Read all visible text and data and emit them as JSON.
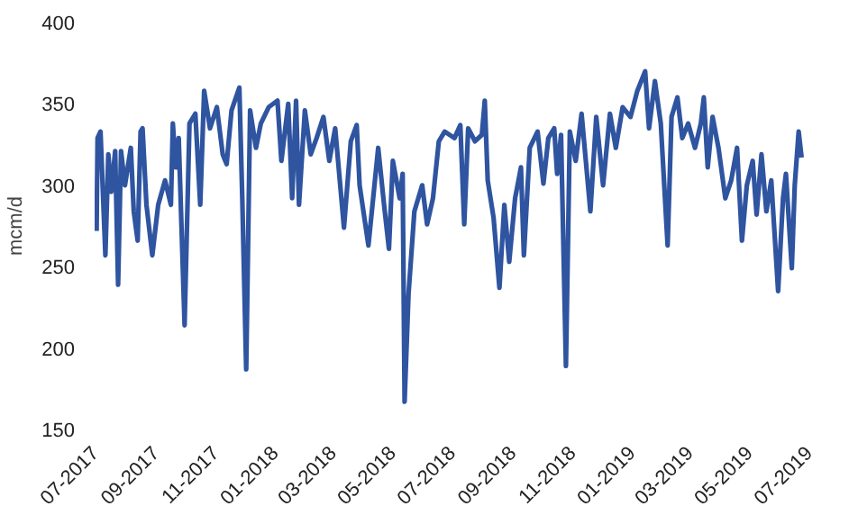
{
  "chart_data": {
    "type": "line",
    "ylabel": "mcm/d",
    "line_style": "solid",
    "marker": "none",
    "grid": false,
    "xlim": [
      "2017-07-01",
      "2019-07-01"
    ],
    "xticks": [
      {
        "value": "2017-07-01",
        "label": "07-2017"
      },
      {
        "value": "2017-09-01",
        "label": "09-2017"
      },
      {
        "value": "2017-11-01",
        "label": "11-2017"
      },
      {
        "value": "2018-01-01",
        "label": "01-2018"
      },
      {
        "value": "2018-03-01",
        "label": "03-2018"
      },
      {
        "value": "2018-05-01",
        "label": "05-2018"
      },
      {
        "value": "2018-07-01",
        "label": "07-2018"
      },
      {
        "value": "2018-09-01",
        "label": "09-2018"
      },
      {
        "value": "2018-11-01",
        "label": "11-2018"
      },
      {
        "value": "2019-01-01",
        "label": "01-2019"
      },
      {
        "value": "2019-03-01",
        "label": "03-2019"
      },
      {
        "value": "2019-05-01",
        "label": "05-2019"
      },
      {
        "value": "2019-07-01",
        "label": "07-2019"
      }
    ],
    "ylim": [
      150,
      400
    ],
    "yticks": [
      150,
      200,
      250,
      300,
      350,
      400
    ],
    "x": [
      "2017-07-03",
      "2017-07-04",
      "2017-07-07",
      "2017-07-12",
      "2017-07-15",
      "2017-07-18",
      "2017-07-22",
      "2017-07-25",
      "2017-07-28",
      "2017-08-01",
      "2017-08-07",
      "2017-08-10",
      "2017-08-14",
      "2017-08-17",
      "2017-08-19",
      "2017-08-23",
      "2017-08-29",
      "2017-09-04",
      "2017-09-11",
      "2017-09-17",
      "2017-09-19",
      "2017-09-22",
      "2017-09-25",
      "2017-10-01",
      "2017-10-06",
      "2017-10-12",
      "2017-10-17",
      "2017-10-21",
      "2017-10-27",
      "2017-11-03",
      "2017-11-09",
      "2017-11-13",
      "2017-11-18",
      "2017-11-26",
      "2017-11-29",
      "2017-12-03",
      "2017-12-07",
      "2017-12-13",
      "2017-12-18",
      "2017-12-26",
      "2018-01-04",
      "2018-01-08",
      "2018-01-15",
      "2018-01-19",
      "2018-01-23",
      "2018-01-26",
      "2018-02-01",
      "2018-02-07",
      "2018-02-13",
      "2018-02-20",
      "2018-02-26",
      "2018-03-04",
      "2018-03-13",
      "2018-03-20",
      "2018-03-26",
      "2018-03-29",
      "2018-04-07",
      "2018-04-17",
      "2018-04-23",
      "2018-04-28",
      "2018-05-02",
      "2018-05-09",
      "2018-05-12",
      "2018-05-14",
      "2018-05-18",
      "2018-05-24",
      "2018-06-01",
      "2018-06-06",
      "2018-06-12",
      "2018-06-18",
      "2018-06-24",
      "2018-07-04",
      "2018-07-10",
      "2018-07-14",
      "2018-07-18",
      "2018-07-25",
      "2018-08-01",
      "2018-08-04",
      "2018-08-07",
      "2018-08-13",
      "2018-08-19",
      "2018-08-24",
      "2018-08-29",
      "2018-09-04",
      "2018-09-10",
      "2018-09-13",
      "2018-09-19",
      "2018-09-27",
      "2018-10-03",
      "2018-10-08",
      "2018-10-14",
      "2018-10-17",
      "2018-10-21",
      "2018-10-26",
      "2018-10-30",
      "2018-11-05",
      "2018-11-11",
      "2018-11-20",
      "2018-11-26",
      "2018-12-03",
      "2018-12-10",
      "2018-12-16",
      "2018-12-23",
      "2018-12-31",
      "2019-01-07",
      "2019-01-15",
      "2019-01-19",
      "2019-01-25",
      "2019-01-31",
      "2019-02-07",
      "2019-02-11",
      "2019-02-17",
      "2019-02-22",
      "2019-02-28",
      "2019-03-07",
      "2019-03-13",
      "2019-03-16",
      "2019-03-20",
      "2019-03-25",
      "2019-03-31",
      "2019-04-07",
      "2019-04-13",
      "2019-04-19",
      "2019-04-24",
      "2019-04-29",
      "2019-05-05",
      "2019-05-09",
      "2019-05-14",
      "2019-05-19",
      "2019-05-24",
      "2019-05-31",
      "2019-06-05",
      "2019-06-08",
      "2019-06-14",
      "2019-06-17",
      "2019-06-21",
      "2019-06-24"
    ],
    "series": [
      {
        "color": "#2f54a0",
        "values": [
          272,
          329,
          333,
          257,
          319,
          296,
          321,
          239,
          321,
          300,
          323,
          284,
          266,
          333,
          335,
          288,
          257,
          288,
          303,
          288,
          338,
          311,
          329,
          214,
          338,
          344,
          288,
          358,
          335,
          348,
          319,
          313,
          346,
          360,
          292,
          187,
          346,
          323,
          338,
          348,
          352,
          315,
          350,
          292,
          352,
          288,
          346,
          319,
          329,
          342,
          315,
          335,
          274,
          327,
          337,
          300,
          263,
          323,
          288,
          261,
          315,
          292,
          307,
          167,
          233,
          284,
          300,
          276,
          292,
          327,
          333,
          329,
          337,
          276,
          335,
          327,
          331,
          352,
          303,
          280,
          237,
          288,
          253,
          292,
          311,
          257,
          323,
          333,
          301,
          329,
          335,
          307,
          331,
          189,
          333,
          315,
          344,
          284,
          342,
          300,
          344,
          323,
          348,
          342,
          358,
          370,
          335,
          364,
          338,
          263,
          342,
          354,
          329,
          338,
          323,
          338,
          354,
          311,
          342,
          323,
          292,
          303,
          323,
          266,
          300,
          315,
          282,
          319,
          284,
          303,
          235,
          292,
          307,
          249,
          300,
          333,
          317
        ]
      }
    ]
  }
}
